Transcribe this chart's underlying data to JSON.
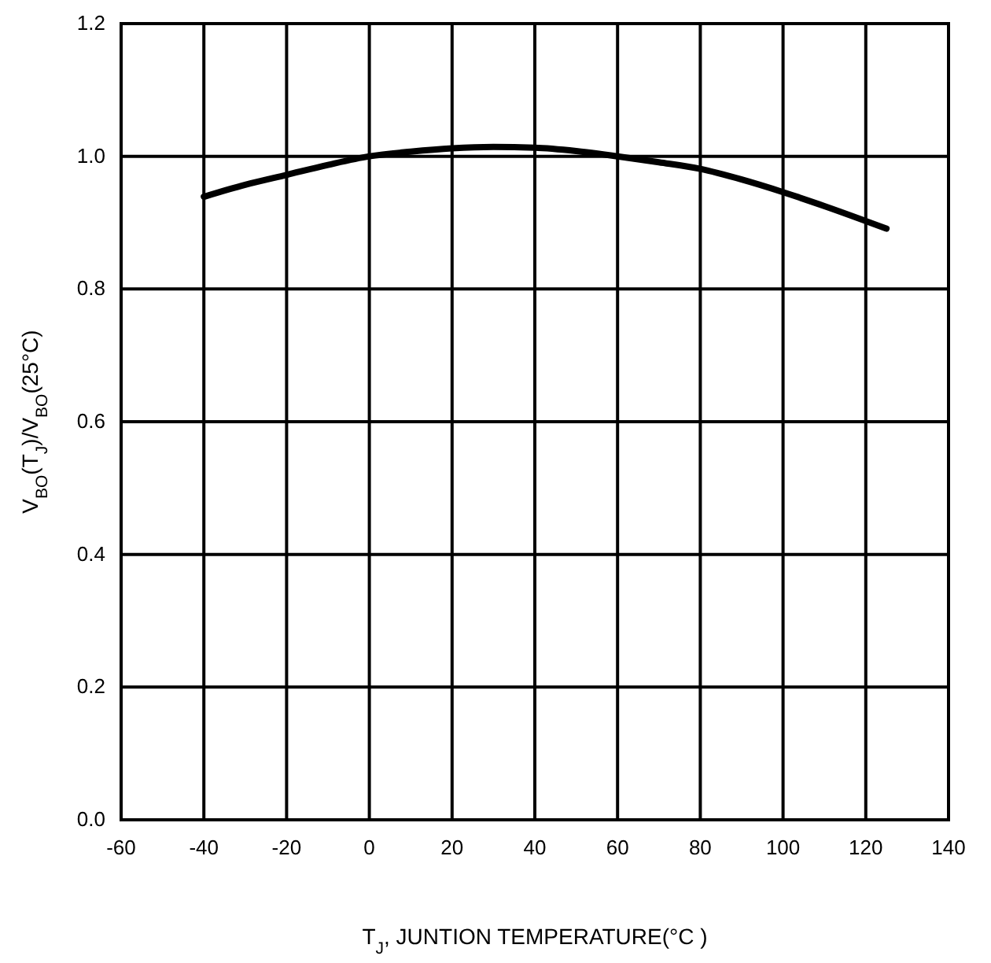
{
  "chart_data": {
    "type": "line",
    "xlabel": "T$_{J}$, JUNTION TEMPERATURE(°C )",
    "ylabel": "V$_{BO}$(T$_{J}$)/V$_{BO}$(25°C)",
    "x": [
      -40,
      -30,
      -20,
      -10,
      0,
      10,
      20,
      30,
      40,
      50,
      60,
      70,
      80,
      90,
      100,
      110,
      125
    ],
    "series": [
      {
        "color": "#000000",
        "values": [
          0.939,
          0.957,
          0.972,
          0.987,
          1.0,
          1.007,
          1.012,
          1.014,
          1.013,
          1.008,
          1.0,
          0.991,
          0.981,
          0.965,
          0.946,
          0.925,
          0.891
        ]
      }
    ],
    "xlim": [
      -60,
      140
    ],
    "xticks": [
      -60,
      -40,
      -20,
      0,
      20,
      40,
      60,
      80,
      100,
      120,
      140
    ],
    "ylim": [
      0,
      1.2
    ],
    "yticks": [
      {
        "value": 0,
        "label": "0.0"
      },
      {
        "value": 0.2,
        "label": "0.2"
      },
      {
        "value": 0.4,
        "label": "0.4"
      },
      {
        "value": 0.6,
        "label": "0.6"
      },
      {
        "value": 0.8,
        "label": "0.8"
      },
      {
        "value": 1.0,
        "label": "1.0"
      },
      {
        "value": 1.2,
        "label": "1.2"
      }
    ],
    "grid": true,
    "marker": "none",
    "line_style": "solid"
  }
}
